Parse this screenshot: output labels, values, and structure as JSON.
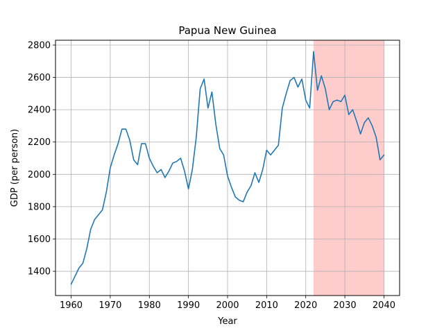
{
  "chart_data": {
    "type": "line",
    "title": "Papua New Guinea",
    "xlabel": "Year",
    "ylabel": "GDP (per person)",
    "xlim": [
      1956,
      2044
    ],
    "ylim": [
      1250,
      2830
    ],
    "x_ticks": [
      1960,
      1970,
      1980,
      1990,
      2000,
      2010,
      2020,
      2030,
      2040
    ],
    "y_ticks": [
      1400,
      1600,
      1800,
      2000,
      2200,
      2400,
      2600,
      2800
    ],
    "grid": true,
    "line_color": "#1f77b4",
    "highlight": {
      "x_start": 2022,
      "x_end": 2040,
      "color": "#ff0000",
      "opacity": 0.2
    },
    "series": [
      {
        "x": [
          1960,
          1961,
          1962,
          1963,
          1964,
          1965,
          1966,
          1967,
          1968,
          1969,
          1970,
          1971,
          1972,
          1973,
          1974,
          1975,
          1976,
          1977,
          1978,
          1979,
          1980,
          1981,
          1982,
          1983,
          1984,
          1985,
          1986,
          1987,
          1988,
          1989,
          1990,
          1991,
          1992,
          1993,
          1994,
          1995,
          1996,
          1997,
          1998,
          1999,
          2000,
          2001,
          2002,
          2003,
          2004,
          2005,
          2006,
          2007,
          2008,
          2009,
          2010,
          2011,
          2012,
          2013,
          2014,
          2015,
          2016,
          2017,
          2018,
          2019,
          2020,
          2021,
          2022,
          2023,
          2024,
          2025,
          2026,
          2027,
          2028,
          2029,
          2030,
          2031,
          2032,
          2033,
          2034,
          2035,
          2036,
          2037,
          2038,
          2039,
          2040
        ],
        "values": [
          1320,
          1370,
          1420,
          1450,
          1540,
          1660,
          1720,
          1750,
          1780,
          1890,
          2040,
          2120,
          2190,
          2280,
          2280,
          2210,
          2090,
          2060,
          2190,
          2190,
          2100,
          2050,
          2010,
          2030,
          1980,
          2020,
          2070,
          2080,
          2100,
          2020,
          1910,
          2030,
          2230,
          2530,
          2590,
          2410,
          2510,
          2310,
          2160,
          2120,
          1990,
          1920,
          1860,
          1840,
          1830,
          1890,
          1930,
          2010,
          1950,
          2030,
          2150,
          2120,
          2150,
          2180,
          2410,
          2500,
          2580,
          2600,
          2540,
          2590,
          2460,
          2410,
          2760,
          2520,
          2610,
          2530,
          2400,
          2450,
          2460,
          2450,
          2490,
          2370,
          2400,
          2330,
          2250,
          2320,
          2350,
          2300,
          2230,
          2090,
          2120
        ]
      }
    ]
  }
}
